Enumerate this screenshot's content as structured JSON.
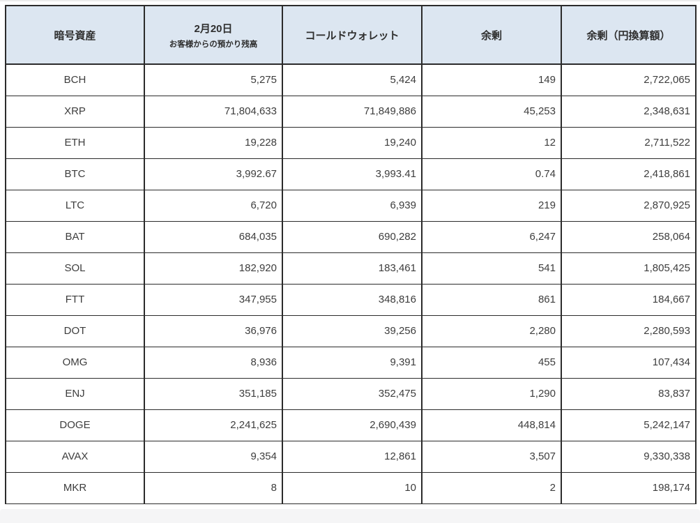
{
  "colors": {
    "header_bg": "#dce6f1",
    "border": "#2b2b2b",
    "body_text": "#3d3d3d",
    "footer_bar": "#f5f5f6",
    "top_edge_line": "#ececec"
  },
  "table": {
    "header": {
      "asset": "暗号資産",
      "deposit_line1": "2月20日",
      "deposit_line2": "お客様からの預かり残高",
      "cold_wallet": "コールドウォレット",
      "surplus": "余剰",
      "surplus_jpy": "余剰（円換算額）"
    },
    "rows": [
      {
        "asset": "BCH",
        "deposit": "5,275",
        "cold_wallet": "5,424",
        "surplus": "149",
        "surplus_jpy": "2,722,065"
      },
      {
        "asset": "XRP",
        "deposit": "71,804,633",
        "cold_wallet": "71,849,886",
        "surplus": "45,253",
        "surplus_jpy": "2,348,631"
      },
      {
        "asset": "ETH",
        "deposit": "19,228",
        "cold_wallet": "19,240",
        "surplus": "12",
        "surplus_jpy": "2,711,522"
      },
      {
        "asset": "BTC",
        "deposit": "3,992.67",
        "cold_wallet": "3,993.41",
        "surplus": "0.74",
        "surplus_jpy": "2,418,861"
      },
      {
        "asset": "LTC",
        "deposit": "6,720",
        "cold_wallet": "6,939",
        "surplus": "219",
        "surplus_jpy": "2,870,925"
      },
      {
        "asset": "BAT",
        "deposit": "684,035",
        "cold_wallet": "690,282",
        "surplus": "6,247",
        "surplus_jpy": "258,064"
      },
      {
        "asset": "SOL",
        "deposit": "182,920",
        "cold_wallet": "183,461",
        "surplus": "541",
        "surplus_jpy": "1,805,425"
      },
      {
        "asset": "FTT",
        "deposit": "347,955",
        "cold_wallet": "348,816",
        "surplus": "861",
        "surplus_jpy": "184,667"
      },
      {
        "asset": "DOT",
        "deposit": "36,976",
        "cold_wallet": "39,256",
        "surplus": "2,280",
        "surplus_jpy": "2,280,593"
      },
      {
        "asset": "OMG",
        "deposit": "8,936",
        "cold_wallet": "9,391",
        "surplus": "455",
        "surplus_jpy": "107,434"
      },
      {
        "asset": "ENJ",
        "deposit": "351,185",
        "cold_wallet": "352,475",
        "surplus": "1,290",
        "surplus_jpy": "83,837"
      },
      {
        "asset": "DOGE",
        "deposit": "2,241,625",
        "cold_wallet": "2,690,439",
        "surplus": "448,814",
        "surplus_jpy": "5,242,147"
      },
      {
        "asset": "AVAX",
        "deposit": "9,354",
        "cold_wallet": "12,861",
        "surplus": "3,507",
        "surplus_jpy": "9,330,338"
      },
      {
        "asset": "MKR",
        "deposit": "8",
        "cold_wallet": "10",
        "surplus": "2",
        "surplus_jpy": "198,174"
      }
    ]
  }
}
